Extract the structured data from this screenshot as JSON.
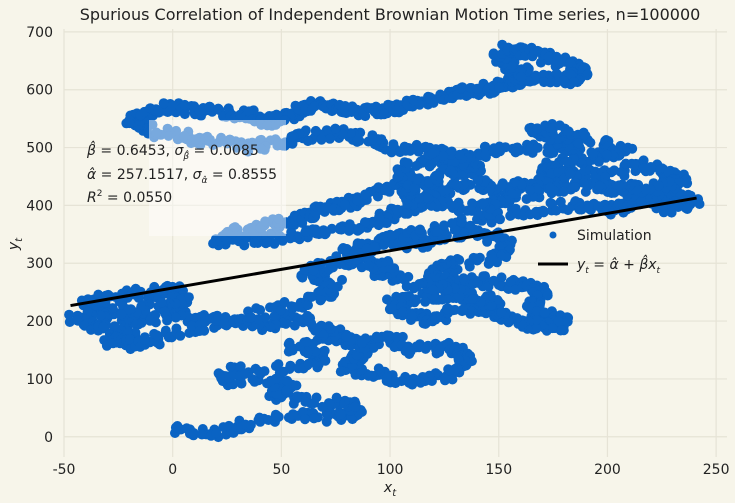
{
  "chart_data": {
    "type": "scatter",
    "title": "Spurious Correlation of Independent Brownian Motion Time series, n=100000",
    "xlabel_main": "x",
    "xlabel_sub": "t",
    "ylabel_main": "y",
    "ylabel_sub": "t",
    "xlim": [
      -50,
      255
    ],
    "ylim": [
      -35,
      705
    ],
    "xticks": [
      -50,
      0,
      50,
      100,
      150,
      200,
      250
    ],
    "yticks": [
      0,
      100,
      200,
      300,
      400,
      500,
      600,
      700
    ],
    "grid": true,
    "colors": {
      "background": "#f7f5ea",
      "grid": "#e6e3d6",
      "scatter": "#0a63c3",
      "fit": "#000000"
    },
    "fit_line": {
      "intercept": 257.1517,
      "slope": 0.6453,
      "x_range": [
        -47,
        241
      ]
    },
    "stats": {
      "beta_hat": "0.6453",
      "sigma_beta": "0.0085",
      "alpha_hat": "257.1517",
      "sigma_alpha": "0.8555",
      "r_squared": "0.0550"
    },
    "legend": {
      "placement": "center-right",
      "items": [
        {
          "label": "Simulation",
          "marker": "dot",
          "color": "#0a63c3"
        },
        {
          "label_main": "y",
          "label_sub": "t",
          "label_eq": " = α̂ + β̂x",
          "label_eq_sub": "t",
          "marker": "line",
          "color": "#000000"
        }
      ]
    },
    "series": [
      {
        "name": "Simulation",
        "path": [
          [
            0,
            10
          ],
          [
            20,
            5
          ],
          [
            35,
            25
          ],
          [
            60,
            35
          ],
          [
            75,
            35
          ],
          [
            85,
            40
          ],
          [
            82,
            60
          ],
          [
            60,
            60
          ],
          [
            45,
            75
          ],
          [
            55,
            90
          ],
          [
            20,
            100
          ],
          [
            30,
            115
          ],
          [
            60,
            120
          ],
          [
            70,
            140
          ],
          [
            55,
            155
          ],
          [
            75,
            180
          ],
          [
            85,
            160
          ],
          [
            100,
            170
          ],
          [
            110,
            150
          ],
          [
            125,
            155
          ],
          [
            135,
            140
          ],
          [
            130,
            120
          ],
          [
            125,
            105
          ],
          [
            105,
            95
          ],
          [
            95,
            110
          ],
          [
            80,
            120
          ],
          [
            85,
            140
          ],
          [
            90,
            160
          ],
          [
            70,
            180
          ],
          [
            58,
            205
          ],
          [
            45,
            190
          ],
          [
            25,
            200
          ],
          [
            5,
            210
          ],
          [
            -15,
            200
          ],
          [
            -30,
            215
          ],
          [
            -40,
            230
          ],
          [
            -30,
            240
          ],
          [
            -15,
            248
          ],
          [
            0,
            255
          ],
          [
            5,
            235
          ],
          [
            -5,
            225
          ],
          [
            -25,
            215
          ],
          [
            -45,
            205
          ],
          [
            -35,
            190
          ],
          [
            -20,
            180
          ],
          [
            -30,
            165
          ],
          [
            -15,
            160
          ],
          [
            -5,
            175
          ],
          [
            15,
            190
          ],
          [
            35,
            210
          ],
          [
            55,
            225
          ],
          [
            70,
            245
          ],
          [
            75,
            265
          ],
          [
            60,
            280
          ],
          [
            70,
            295
          ],
          [
            85,
            310
          ],
          [
            90,
            325
          ],
          [
            100,
            345
          ],
          [
            110,
            330
          ],
          [
            120,
            340
          ],
          [
            135,
            355
          ],
          [
            145,
            350
          ],
          [
            155,
            330
          ],
          [
            148,
            310
          ],
          [
            125,
            295
          ],
          [
            120,
            280
          ],
          [
            130,
            265
          ],
          [
            145,
            270
          ],
          [
            160,
            260
          ],
          [
            170,
            250
          ],
          [
            165,
            230
          ],
          [
            170,
            210
          ],
          [
            180,
            200
          ],
          [
            175,
            190
          ],
          [
            160,
            195
          ],
          [
            150,
            210
          ],
          [
            140,
            230
          ],
          [
            125,
            245
          ],
          [
            110,
            240
          ],
          [
            100,
            230
          ],
          [
            108,
            210
          ],
          [
            118,
            200
          ],
          [
            128,
            215
          ],
          [
            140,
            225
          ],
          [
            150,
            215
          ],
          [
            145,
            235
          ],
          [
            130,
            250
          ],
          [
            110,
            265
          ],
          [
            95,
            280
          ],
          [
            100,
            300
          ],
          [
            85,
            300
          ],
          [
            80,
            320
          ],
          [
            95,
            335
          ],
          [
            110,
            350
          ],
          [
            130,
            365
          ],
          [
            150,
            380
          ],
          [
            170,
            395
          ],
          [
            190,
            400
          ],
          [
            205,
            390
          ],
          [
            215,
            410
          ],
          [
            230,
            420
          ],
          [
            240,
            405
          ],
          [
            228,
            395
          ],
          [
            210,
            420
          ],
          [
            195,
            440
          ],
          [
            180,
            450
          ],
          [
            165,
            440
          ],
          [
            150,
            425
          ],
          [
            140,
            440
          ],
          [
            125,
            425
          ],
          [
            115,
            410
          ],
          [
            105,
            390
          ],
          [
            95,
            375
          ],
          [
            80,
            360
          ],
          [
            65,
            350
          ],
          [
            50,
            345
          ],
          [
            40,
            340
          ],
          [
            20,
            338
          ],
          [
            30,
            355
          ],
          [
            45,
            365
          ],
          [
            55,
            375
          ],
          [
            65,
            385
          ],
          [
            75,
            400
          ],
          [
            85,
            410
          ],
          [
            95,
            425
          ],
          [
            110,
            440
          ],
          [
            105,
            460
          ],
          [
            120,
            480
          ],
          [
            130,
            470
          ],
          [
            140,
            490
          ],
          [
            155,
            500
          ],
          [
            170,
            495
          ],
          [
            185,
            505
          ],
          [
            175,
            520
          ],
          [
            165,
            530
          ],
          [
            175,
            535
          ],
          [
            195,
            510
          ],
          [
            210,
            495
          ],
          [
            200,
            485
          ],
          [
            185,
            480
          ],
          [
            170,
            465
          ],
          [
            180,
            455
          ],
          [
            200,
            455
          ],
          [
            215,
            470
          ],
          [
            225,
            460
          ],
          [
            235,
            445
          ],
          [
            222,
            430
          ],
          [
            205,
            430
          ],
          [
            185,
            430
          ],
          [
            165,
            420
          ],
          [
            150,
            410
          ],
          [
            140,
            395
          ],
          [
            120,
            400
          ],
          [
            108,
            415
          ],
          [
            110,
            435
          ],
          [
            125,
            455
          ],
          [
            140,
            460
          ],
          [
            135,
            480
          ],
          [
            120,
            495
          ],
          [
            100,
            500
          ],
          [
            90,
            515
          ],
          [
            75,
            525
          ],
          [
            60,
            520
          ],
          [
            50,
            510
          ],
          [
            35,
            500
          ],
          [
            20,
            510
          ],
          [
            5,
            520
          ],
          [
            -10,
            530
          ],
          [
            -20,
            545
          ],
          [
            -15,
            555
          ],
          [
            -5,
            570
          ],
          [
            10,
            565
          ],
          [
            25,
            560
          ],
          [
            38,
            555
          ],
          [
            45,
            545
          ],
          [
            55,
            555
          ],
          [
            60,
            570
          ],
          [
            70,
            575
          ],
          [
            80,
            565
          ],
          [
            90,
            560
          ],
          [
            100,
            565
          ],
          [
            110,
            575
          ],
          [
            120,
            585
          ],
          [
            130,
            592
          ],
          [
            140,
            600
          ],
          [
            150,
            605
          ],
          [
            158,
            615
          ],
          [
            162,
            630
          ],
          [
            155,
            640
          ],
          [
            150,
            655
          ],
          [
            155,
            670
          ],
          [
            165,
            665
          ],
          [
            175,
            650
          ],
          [
            185,
            640
          ],
          [
            190,
            630
          ],
          [
            185,
            618
          ],
          [
            170,
            620
          ],
          [
            160,
            625
          ]
        ]
      }
    ]
  }
}
